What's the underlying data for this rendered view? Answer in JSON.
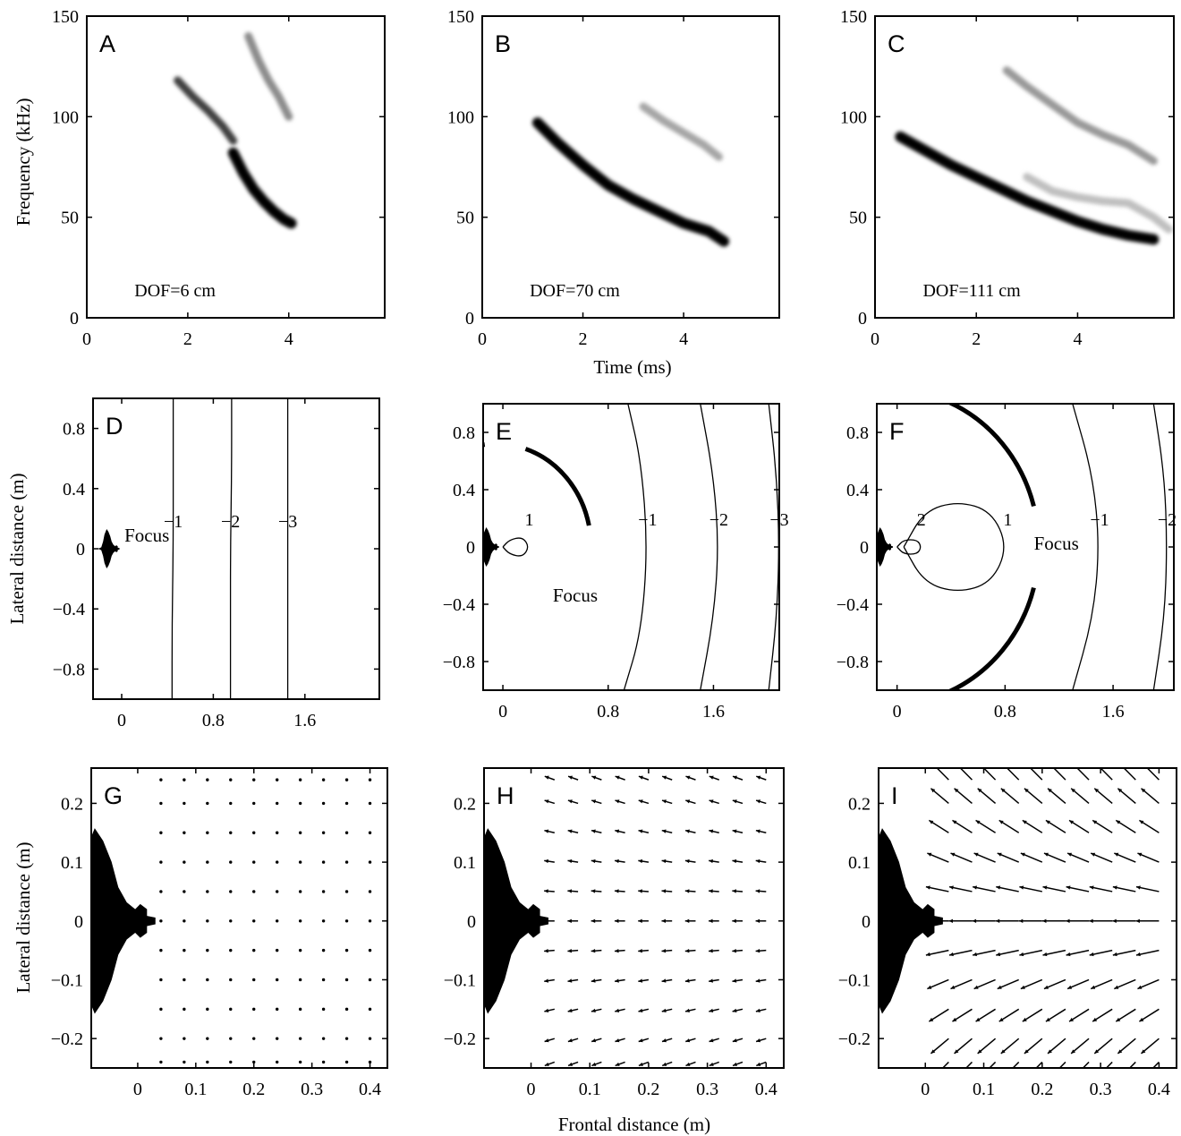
{
  "figure": {
    "labels": {
      "freq_ylabel": "Frequency (kHz)",
      "time_xlabel": "Time (ms)",
      "lateral_ylabel_mid": "Lateral distance (m)",
      "lateral_ylabel_bottom": "Lateral distance (m)",
      "frontal_xlabel": "Frontal distance (m)"
    }
  },
  "chart_data": [
    {
      "panel": "A",
      "type": "heatmap",
      "xticks": [
        "0",
        "2",
        "4"
      ],
      "yticks": [
        "0",
        "50",
        "100",
        "150"
      ],
      "xlim": [
        0,
        5.9
      ],
      "ylim": [
        0,
        150
      ],
      "annotation": "DOF=6 cm",
      "ridges": [
        {
          "intensity": 1.0,
          "points": [
            [
              2.9,
              82
            ],
            [
              3.1,
              72
            ],
            [
              3.3,
              64
            ],
            [
              3.5,
              58
            ],
            [
              3.7,
              53
            ],
            [
              3.9,
              49
            ],
            [
              4.05,
              47
            ]
          ]
        },
        {
          "intensity": 0.75,
          "points": [
            [
              1.8,
              118
            ],
            [
              2.1,
              110
            ],
            [
              2.4,
              103
            ],
            [
              2.7,
              95
            ],
            [
              2.9,
              88
            ]
          ]
        },
        {
          "intensity": 0.45,
          "points": [
            [
              3.2,
              140
            ],
            [
              3.4,
              128
            ],
            [
              3.6,
              118
            ],
            [
              3.8,
              110
            ],
            [
              4.0,
              100
            ]
          ]
        }
      ]
    },
    {
      "panel": "B",
      "type": "heatmap",
      "xticks": [
        "0",
        "2",
        "4"
      ],
      "yticks": [
        "0",
        "50",
        "100",
        "150"
      ],
      "xlim": [
        0,
        5.9
      ],
      "ylim": [
        0,
        150
      ],
      "annotation": "DOF=70 cm",
      "ridges": [
        {
          "intensity": 1.0,
          "points": [
            [
              1.1,
              97
            ],
            [
              1.5,
              87
            ],
            [
              2.0,
              76
            ],
            [
              2.5,
              66
            ],
            [
              3.0,
              59
            ],
            [
              3.5,
              53
            ],
            [
              4.0,
              47
            ],
            [
              4.5,
              43
            ],
            [
              4.8,
              38
            ]
          ]
        },
        {
          "intensity": 0.35,
          "points": [
            [
              3.2,
              105
            ],
            [
              3.6,
              98
            ],
            [
              4.0,
              92
            ],
            [
              4.4,
              86
            ],
            [
              4.7,
              80
            ]
          ]
        }
      ]
    },
    {
      "panel": "C",
      "type": "heatmap",
      "xticks": [
        "0",
        "2",
        "4"
      ],
      "yticks": [
        "0",
        "50",
        "100",
        "150"
      ],
      "xlim": [
        0,
        5.9
      ],
      "ylim": [
        0,
        150
      ],
      "annotation": "DOF=111 cm",
      "ridges": [
        {
          "intensity": 1.0,
          "points": [
            [
              0.5,
              90
            ],
            [
              1.0,
              83
            ],
            [
              1.5,
              76
            ],
            [
              2.0,
              70
            ],
            [
              2.5,
              64
            ],
            [
              3.0,
              58
            ],
            [
              3.5,
              53
            ],
            [
              4.0,
              48
            ],
            [
              4.5,
              44
            ],
            [
              5.0,
              41
            ],
            [
              5.5,
              39
            ]
          ]
        },
        {
          "intensity": 0.4,
          "points": [
            [
              2.6,
              123
            ],
            [
              3.0,
              115
            ],
            [
              3.5,
              106
            ],
            [
              4.0,
              97
            ],
            [
              4.5,
              91
            ],
            [
              5.0,
              86
            ],
            [
              5.5,
              78
            ]
          ]
        },
        {
          "intensity": 0.25,
          "points": [
            [
              3.0,
              70
            ],
            [
              3.5,
              63
            ],
            [
              4.0,
              60
            ],
            [
              4.5,
              58
            ],
            [
              5.0,
              57
            ],
            [
              5.5,
              50
            ],
            [
              5.8,
              44
            ]
          ]
        }
      ]
    },
    {
      "panel": "D",
      "type": "contour",
      "xticks": [
        "0",
        "0.8",
        "1.6"
      ],
      "yticks": [
        "0.8",
        "0.4",
        "0",
        "−0.4",
        "−0.8"
      ],
      "xlim": [
        -0.25,
        2.25
      ],
      "ylim": [
        -1.0,
        1.0
      ],
      "focus_label": "Focus",
      "focus_arc": null,
      "contours": [
        {
          "label": "−1",
          "points": [
            [
              0.45,
              1.0
            ],
            [
              0.45,
              0.5
            ],
            [
              0.45,
              0.0
            ],
            [
              0.44,
              -0.5
            ],
            [
              0.44,
              -1.0
            ]
          ]
        },
        {
          "label": "−2",
          "points": [
            [
              0.96,
              1.0
            ],
            [
              0.96,
              0.5
            ],
            [
              0.95,
              0.0
            ],
            [
              0.95,
              -0.5
            ],
            [
              0.95,
              -1.0
            ]
          ]
        },
        {
          "label": "−3",
          "points": [
            [
              1.45,
              1.0
            ],
            [
              1.45,
              0.5
            ],
            [
              1.45,
              0.0
            ],
            [
              1.45,
              -0.5
            ],
            [
              1.45,
              -1.0
            ]
          ]
        }
      ]
    },
    {
      "panel": "E",
      "type": "contour",
      "xticks": [
        "0",
        "0.8",
        "1.6"
      ],
      "yticks": [
        "0.8",
        "0.4",
        "0",
        "−0.4",
        "−0.8"
      ],
      "xlim": [
        -0.15,
        2.1
      ],
      "ylim": [
        -1.0,
        1.0
      ],
      "focus_label": "Focus",
      "focus_arc": {
        "cx": -0.05,
        "cy": 0.0,
        "r": 0.72,
        "segments": [
          [
            -72,
            -12
          ],
          [
            -100,
            -97
          ],
          [
            98,
            105
          ]
        ]
      },
      "contours": [
        {
          "label": "1",
          "points": [
            [
              0.0,
              0.0
            ],
            [
              0.05,
              0.05
            ],
            [
              0.15,
              0.07
            ],
            [
              0.2,
              0.0
            ],
            [
              0.15,
              -0.07
            ],
            [
              0.05,
              -0.05
            ],
            [
              0.0,
              0.0
            ]
          ]
        },
        {
          "label": "−1",
          "points": [
            [
              0.95,
              1.0
            ],
            [
              1.05,
              0.6
            ],
            [
              1.1,
              0.0
            ],
            [
              1.05,
              -0.6
            ],
            [
              0.92,
              -1.0
            ]
          ]
        },
        {
          "label": "−2",
          "points": [
            [
              1.5,
              1.0
            ],
            [
              1.6,
              0.5
            ],
            [
              1.64,
              0.0
            ],
            [
              1.6,
              -0.5
            ],
            [
              1.5,
              -1.0
            ]
          ]
        },
        {
          "label": "−3",
          "points": [
            [
              2.02,
              1.0
            ],
            [
              2.08,
              0.5
            ],
            [
              2.1,
              0.0
            ],
            [
              2.08,
              -0.5
            ],
            [
              2.02,
              -1.0
            ]
          ]
        }
      ]
    },
    {
      "panel": "F",
      "type": "contour",
      "xticks": [
        "0",
        "0.8",
        "1.6"
      ],
      "yticks": [
        "0.8",
        "0.4",
        "0",
        "−0.4",
        "−0.8"
      ],
      "xlim": [
        -0.15,
        2.05
      ],
      "ylim": [
        -1.0,
        1.0
      ],
      "focus_label": "Focus",
      "focus_arc": {
        "cx": -0.05,
        "cy": 0.0,
        "r": 1.1,
        "segments": [
          [
            -67,
            -15
          ],
          [
            15,
            67
          ]
        ]
      },
      "contours": [
        {
          "label": "1",
          "points": [
            [
              0.05,
              0.0
            ],
            [
              0.2,
              0.25
            ],
            [
              0.45,
              0.32
            ],
            [
              0.7,
              0.25
            ],
            [
              0.82,
              0.0
            ],
            [
              0.7,
              -0.25
            ],
            [
              0.45,
              -0.32
            ],
            [
              0.2,
              -0.25
            ],
            [
              0.05,
              0.0
            ]
          ]
        },
        {
          "label": "2",
          "points": [
            [
              0.0,
              0.0
            ],
            [
              0.05,
              0.05
            ],
            [
              0.15,
              0.05
            ],
            [
              0.18,
              0.0
            ],
            [
              0.15,
              -0.05
            ],
            [
              0.05,
              -0.05
            ],
            [
              0.0,
              0.0
            ]
          ]
        },
        {
          "label": "−1",
          "points": [
            [
              1.3,
              1.0
            ],
            [
              1.45,
              0.5
            ],
            [
              1.5,
              0.0
            ],
            [
              1.45,
              -0.5
            ],
            [
              1.3,
              -1.0
            ]
          ]
        },
        {
          "label": "−2",
          "points": [
            [
              1.9,
              1.0
            ],
            [
              1.98,
              0.5
            ],
            [
              2.0,
              0.0
            ],
            [
              1.98,
              -0.5
            ],
            [
              1.9,
              -1.0
            ]
          ]
        }
      ]
    },
    {
      "panel": "G",
      "type": "quiver",
      "xticks": [
        "0",
        "0.1",
        "0.2",
        "0.3",
        "0.4"
      ],
      "yticks": [
        "0.2",
        "0.1",
        "0",
        "−0.1",
        "−0.2"
      ],
      "xlim": [
        -0.08,
        0.43
      ],
      "ylim": [
        -0.25,
        0.26
      ],
      "grid_x": [
        0.04,
        0.08,
        0.12,
        0.16,
        0.2,
        0.24,
        0.28,
        0.32,
        0.36,
        0.4
      ],
      "grid_y": [
        0.24,
        0.2,
        0.15,
        0.1,
        0.05,
        0.0,
        -0.05,
        -0.1,
        -0.15,
        -0.2,
        -0.24
      ],
      "vector_scale": 0.08,
      "vector_convergence": 0.08
    },
    {
      "panel": "H",
      "type": "quiver",
      "xticks": [
        "0",
        "0.1",
        "0.2",
        "0.3",
        "0.4"
      ],
      "yticks": [
        "0.2",
        "0.1",
        "0",
        "−0.1",
        "−0.2"
      ],
      "xlim": [
        -0.08,
        0.43
      ],
      "ylim": [
        -0.25,
        0.26
      ],
      "grid_x": [
        0.04,
        0.08,
        0.12,
        0.16,
        0.2,
        0.24,
        0.28,
        0.32,
        0.36,
        0.4
      ],
      "grid_y": [
        0.24,
        0.2,
        0.15,
        0.1,
        0.05,
        0.0,
        -0.05,
        -0.1,
        -0.15,
        -0.2,
        -0.24
      ],
      "vector_scale": 0.45,
      "vector_convergence": 0.25
    },
    {
      "panel": "I",
      "type": "quiver",
      "xticks": [
        "0",
        "0.1",
        "0.2",
        "0.3",
        "0.4"
      ],
      "yticks": [
        "0.2",
        "0.1",
        "0",
        "−0.1",
        "−0.2"
      ],
      "xlim": [
        -0.08,
        0.43
      ],
      "ylim": [
        -0.25,
        0.26
      ],
      "grid_x": [
        0.04,
        0.08,
        0.12,
        0.16,
        0.2,
        0.24,
        0.28,
        0.32,
        0.36,
        0.4
      ],
      "grid_y": [
        0.24,
        0.2,
        0.15,
        0.1,
        0.05,
        0.0,
        -0.05,
        -0.1,
        -0.15,
        -0.2,
        -0.24
      ],
      "vector_scale": 1.0,
      "vector_convergence": 0.7
    }
  ]
}
